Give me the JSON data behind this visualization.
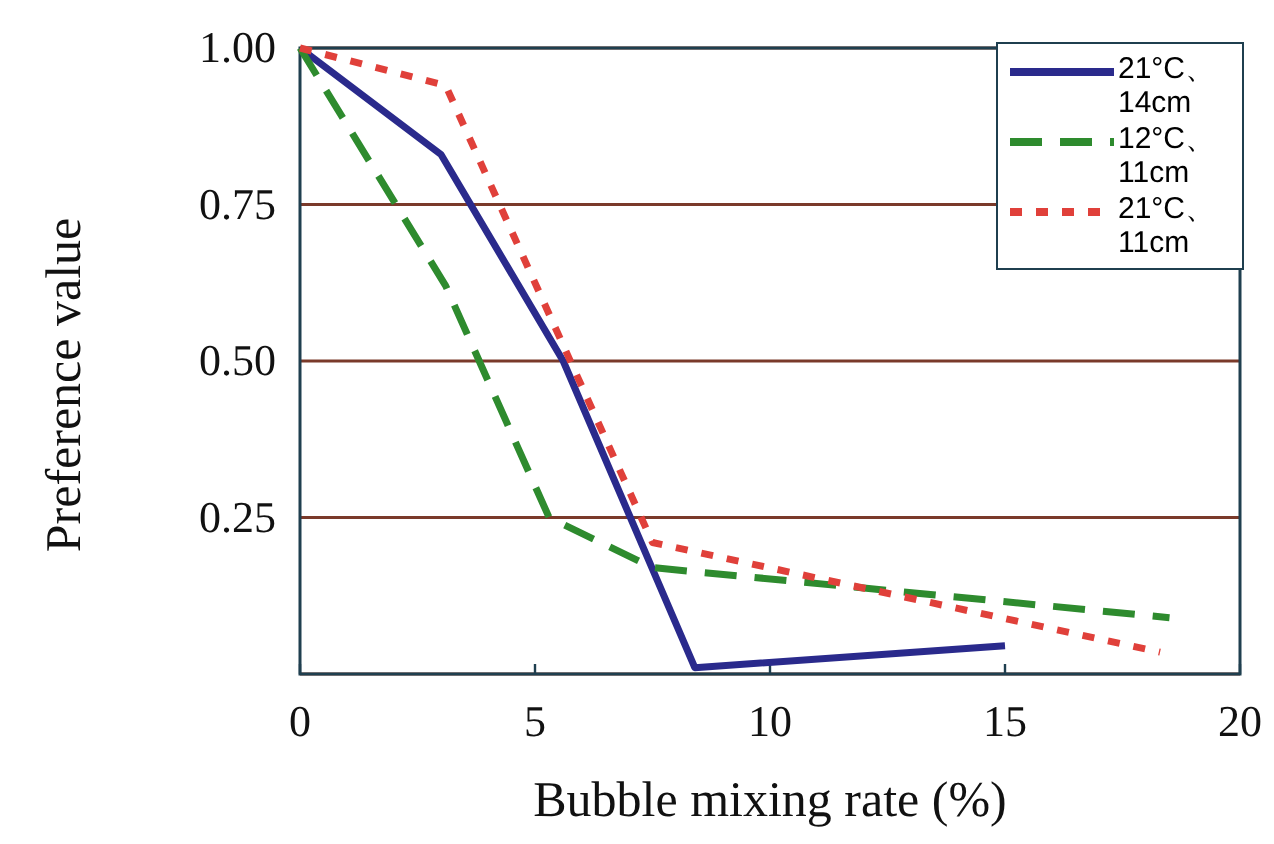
{
  "chart_data": {
    "type": "line",
    "xlabel": "Bubble mixing rate (%)",
    "ylabel": "Preference value",
    "xlim": [
      0,
      20
    ],
    "ylim": [
      0,
      1
    ],
    "xticks": [
      0,
      5,
      10,
      15,
      20
    ],
    "yticks": [
      {
        "value": 0,
        "label": null
      },
      {
        "value": 0.25,
        "label": "0.25"
      },
      {
        "value": 0.5,
        "label": "0.50"
      },
      {
        "value": 0.75,
        "label": "0.75"
      },
      {
        "value": 1,
        "label": "1.00"
      }
    ],
    "grid": "y",
    "legend": "top right",
    "marker": "none",
    "series": [
      {
        "name": "21°C、14cm",
        "color": "#2a2a8c",
        "line_style": "solid",
        "x": [
          0,
          3,
          5.6,
          8.4,
          15
        ],
        "values": [
          1.0,
          0.83,
          0.5,
          0.01,
          0.045
        ]
      },
      {
        "name": "12°C、11cm",
        "color": "#2e8b2e",
        "line_style": "dashed",
        "x": [
          0,
          3.1,
          5.3,
          7.5,
          18.5
        ],
        "values": [
          1.0,
          0.62,
          0.25,
          0.17,
          0.09
        ]
      },
      {
        "name": "21°C、11cm",
        "color": "#e0403a",
        "line_style": "dotted",
        "x": [
          0,
          3.1,
          7.5,
          18.3
        ],
        "values": [
          1.0,
          0.94,
          0.21,
          0.035
        ]
      }
    ]
  }
}
